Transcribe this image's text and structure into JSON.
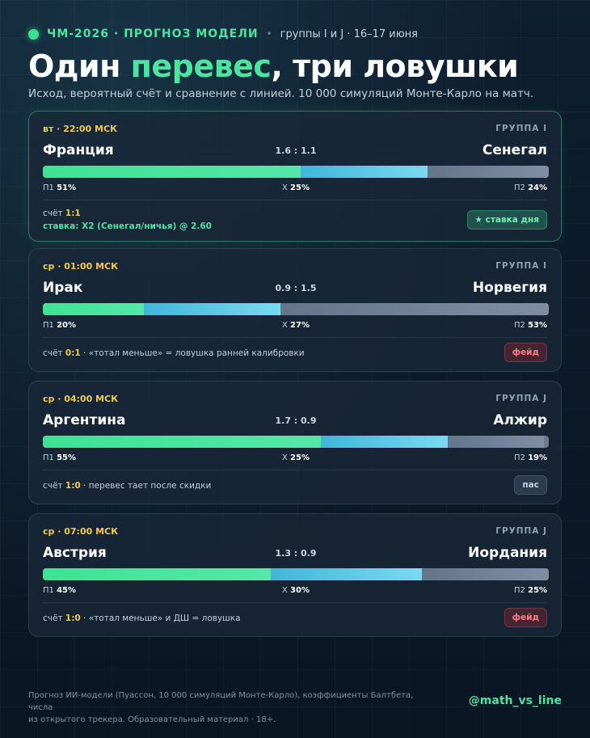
{
  "header": {
    "brand": "ЧМ-2026 · ПРОГНОЗ МОДЕЛИ",
    "separator": "•",
    "subtitle": "группы I и J · 16–17 июня",
    "headline_part1": "Один ",
    "headline_accent": "перевес",
    "headline_part2": ", три ловушки",
    "lede": "Исход, вероятный счёт и сравнение с линией. 10 000 симуляций Монте-Карло на матч."
  },
  "labels": {
    "p1": "П1",
    "x": "Х",
    "p2": "П2",
    "score_prefix": "счёт"
  },
  "colors": {
    "accent": "#4fe3a0",
    "time": "#f2c94c",
    "fade": "#ff7d86"
  },
  "matches": [
    {
      "time": "вт · 22:00 МСК",
      "group": "ГРУППА I",
      "home": "Франция",
      "away": "Сенегал",
      "xg": "1.6 : 1.1",
      "p1": 51,
      "x": 25,
      "p2": 24,
      "p1_text": "51%",
      "x_text": "25%",
      "p2_text": "24%",
      "score": "1:1",
      "note": "",
      "bet": "ставка: X2 (Сенегал/ничья) @ 2.60",
      "tag": "★ ставка дня",
      "tag_kind": "star"
    },
    {
      "time": "ср · 01:00 МСК",
      "group": "ГРУППА I",
      "home": "Ирак",
      "away": "Норвегия",
      "xg": "0.9 : 1.5",
      "p1": 20,
      "x": 27,
      "p2": 53,
      "p1_text": "20%",
      "x_text": "27%",
      "p2_text": "53%",
      "score": "0:1",
      "note": " · «тотал меньше» = ловушка ранней калибровки",
      "bet": "",
      "tag": "фейд",
      "tag_kind": "fade"
    },
    {
      "time": "ср · 04:00 МСК",
      "group": "ГРУППА J",
      "home": "Аргентина",
      "away": "Алжир",
      "xg": "1.7 : 0.9",
      "p1": 55,
      "x": 25,
      "p2": 19,
      "p1_text": "55%",
      "x_text": "25%",
      "p2_text": "19%",
      "score": "1:0",
      "note": " · перевес тает после скидки",
      "bet": "",
      "tag": "пас",
      "tag_kind": "pass"
    },
    {
      "time": "ср · 07:00 МСК",
      "group": "ГРУППА J",
      "home": "Австрия",
      "away": "Иордания",
      "xg": "1.3 : 0.9",
      "p1": 45,
      "x": 30,
      "p2": 25,
      "p1_text": "45%",
      "x_text": "30%",
      "p2_text": "25%",
      "score": "1:0",
      "note": " · «тотал меньше» и ДШ = ловушка",
      "bet": "",
      "tag": "фейд",
      "tag_kind": "fade"
    }
  ],
  "footer": {
    "line1": "Прогноз ИИ-модели (Пуассон, 10 000 симуляций Монте-Карло), коэффициенты Балтбета, числа",
    "line2": "из открытого трекера. Образовательный материал · 18+.",
    "handle": "@math_vs_line"
  }
}
